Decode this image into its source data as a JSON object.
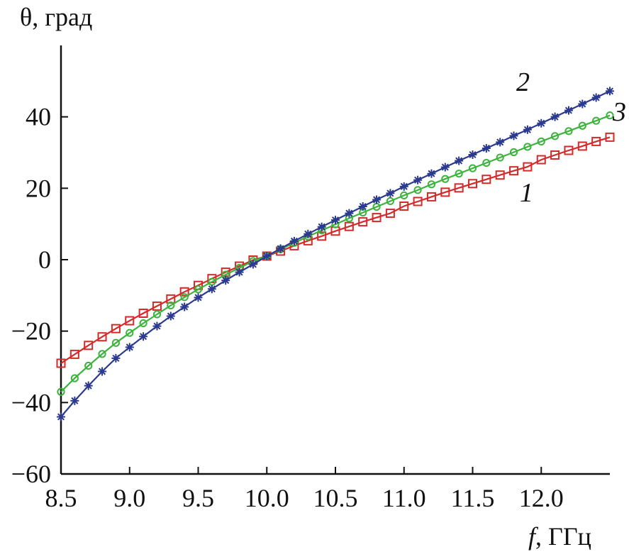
{
  "chart_data": {
    "type": "line",
    "ylabel": "θ, град",
    "xlabel_italic": "f",
    "xlabel_rest": ", ГГц",
    "xlim": [
      8.5,
      12.5
    ],
    "ylim": [
      -60,
      60
    ],
    "x_ticks": [
      8.5,
      9.0,
      9.5,
      10.0,
      10.5,
      11.0,
      11.5,
      12.0
    ],
    "x_tick_labels": [
      "8.5",
      "9.0",
      "9.5",
      "10.0",
      "10.5",
      "11.0",
      "11.5",
      "12.0"
    ],
    "y_ticks": [
      -60,
      -40,
      -20,
      0,
      20,
      40
    ],
    "y_tick_labels": [
      "−60",
      "−40",
      "−20",
      "0",
      "20",
      "40"
    ],
    "grid": false,
    "series": [
      {
        "name": "1",
        "color": "#d42a2a",
        "marker": "square",
        "x": [
          8.5,
          8.6,
          8.7,
          8.8,
          8.9,
          9.0,
          9.1,
          9.2,
          9.3,
          9.4,
          9.5,
          9.6,
          9.7,
          9.8,
          9.9,
          10.0,
          10.1,
          10.2,
          10.3,
          10.4,
          10.5,
          10.6,
          10.7,
          10.8,
          10.9,
          11.0,
          11.1,
          11.2,
          11.3,
          11.4,
          11.5,
          11.6,
          11.7,
          11.8,
          11.9,
          12.0,
          12.1,
          12.2,
          12.3,
          12.4,
          12.5
        ],
        "y": [
          -29.0,
          -26.5,
          -24.0,
          -21.6,
          -19.3,
          -17.1,
          -15.0,
          -13.0,
          -11.0,
          -9.0,
          -7.2,
          -5.3,
          -3.5,
          -1.8,
          -0.1,
          1.0,
          2.4,
          3.9,
          5.3,
          6.6,
          8.0,
          9.3,
          10.6,
          11.8,
          13.0,
          15.0,
          16.3,
          17.6,
          18.9,
          20.1,
          21.3,
          22.5,
          23.7,
          24.9,
          26.0,
          28.0,
          29.3,
          30.6,
          31.8,
          33.1,
          34.3
        ]
      },
      {
        "name": "2",
        "color": "#2b3a8f",
        "marker": "asterisk",
        "x": [
          8.5,
          8.6,
          8.7,
          8.8,
          8.9,
          9.0,
          9.1,
          9.2,
          9.3,
          9.4,
          9.5,
          9.6,
          9.7,
          9.8,
          9.9,
          10.0,
          10.1,
          10.2,
          10.3,
          10.4,
          10.5,
          10.6,
          10.7,
          10.8,
          10.9,
          11.0,
          11.1,
          11.2,
          11.3,
          11.4,
          11.5,
          11.6,
          11.7,
          11.8,
          11.9,
          12.0,
          12.1,
          12.2,
          12.3,
          12.4,
          12.5
        ],
        "y": [
          -44.0,
          -39.5,
          -35.3,
          -31.3,
          -27.6,
          -24.5,
          -21.5,
          -18.6,
          -15.8,
          -13.2,
          -10.6,
          -8.2,
          -5.8,
          -3.5,
          -1.3,
          1.0,
          3.1,
          5.2,
          7.2,
          9.2,
          11.1,
          13.0,
          14.9,
          16.8,
          18.6,
          20.5,
          22.3,
          24.1,
          25.9,
          27.7,
          29.4,
          31.2,
          32.9,
          34.7,
          36.4,
          38.2,
          40.0,
          41.8,
          43.6,
          45.4,
          47.2
        ]
      },
      {
        "name": "3",
        "color": "#3db33d",
        "marker": "circle",
        "x": [
          8.5,
          8.6,
          8.7,
          8.8,
          8.9,
          9.0,
          9.1,
          9.2,
          9.3,
          9.4,
          9.5,
          9.6,
          9.7,
          9.8,
          9.9,
          10.0,
          10.1,
          10.2,
          10.3,
          10.4,
          10.5,
          10.6,
          10.7,
          10.8,
          10.9,
          11.0,
          11.1,
          11.2,
          11.3,
          11.4,
          11.5,
          11.6,
          11.7,
          11.8,
          11.9,
          12.0,
          12.1,
          12.2,
          12.3,
          12.4,
          12.5
        ],
        "y": [
          -37.0,
          -33.2,
          -29.7,
          -26.4,
          -23.3,
          -20.5,
          -17.8,
          -15.3,
          -12.8,
          -10.5,
          -8.3,
          -6.2,
          -4.2,
          -2.3,
          -0.4,
          1.0,
          2.9,
          4.7,
          6.5,
          8.2,
          9.9,
          11.6,
          13.2,
          14.8,
          16.4,
          18.0,
          19.5,
          21.1,
          22.6,
          24.1,
          25.6,
          27.1,
          28.6,
          30.1,
          31.6,
          33.1,
          34.6,
          36.0,
          37.5,
          38.9,
          40.4
        ]
      }
    ],
    "curve_labels": [
      "1",
      "2",
      "3"
    ]
  }
}
